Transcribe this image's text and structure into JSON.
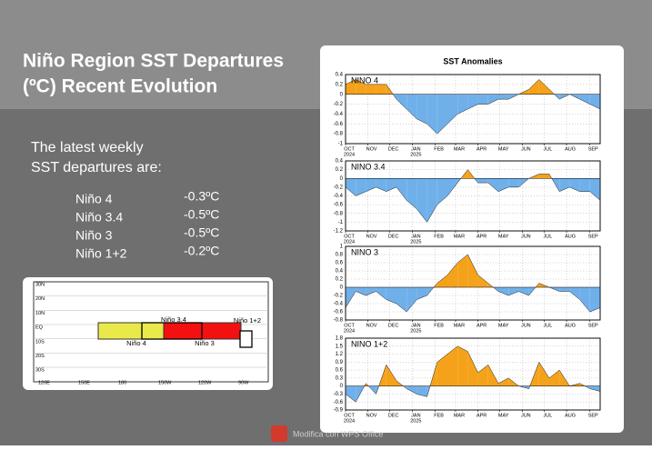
{
  "slide": {
    "title_lines": [
      "Niño Region SST Departures",
      "(ºC) Recent Evolution"
    ],
    "intro_lines": [
      "The latest weekly",
      "SST departures are:"
    ],
    "regions": [
      {
        "name": "Niño 4",
        "value": "-0.3ºC"
      },
      {
        "name": "Niño 3.4",
        "value": "-0.5ºC"
      },
      {
        "name": "Niño 3",
        "value": "-0.5ºC"
      },
      {
        "name": "Niño 1+2",
        "value": "-0.2ºC"
      }
    ],
    "panel_title": "SST Anomalies",
    "watermark": "Modifica con WPS Office"
  },
  "map": {
    "lat_labels": [
      "30N",
      "20N",
      "10N",
      "EQ",
      "10S",
      "20S",
      "30S"
    ],
    "lon_labels": [
      "120E",
      "150E",
      "180",
      "150W",
      "120W",
      "90W"
    ],
    "regions": [
      "Niño 4",
      "Niño 3.4",
      "Niño 3",
      "Niño 1+2"
    ]
  },
  "chart_data": [
    {
      "type": "area",
      "title": "NINO 4",
      "x": [
        0,
        2,
        4,
        6,
        8,
        10,
        12,
        14,
        16,
        18,
        20,
        22,
        24,
        26,
        28,
        30,
        32,
        34,
        36,
        38,
        40,
        42,
        44,
        46,
        48,
        50
      ],
      "values": [
        0.2,
        0.3,
        0.2,
        0.2,
        0.2,
        -0.1,
        -0.3,
        -0.5,
        -0.6,
        -0.8,
        -0.6,
        -0.4,
        -0.3,
        -0.2,
        -0.2,
        -0.1,
        -0.1,
        0.0,
        0.1,
        0.3,
        0.1,
        -0.1,
        0.0,
        -0.1,
        -0.2,
        -0.3
      ],
      "positive_color": "#f5a21b",
      "negative_color": "#70b0ea",
      "xlim": [
        0,
        50
      ],
      "ylim": [
        -1,
        0.4
      ],
      "yticks": [
        0.4,
        0.2,
        0,
        -0.2,
        -0.4,
        -0.6,
        -0.8,
        -1
      ],
      "xticks": [
        {
          "value": 0,
          "label": "OCT"
        },
        {
          "value": 4.4,
          "label": "NOV"
        },
        {
          "value": 8.7,
          "label": "DEC"
        },
        {
          "value": 13.1,
          "label": "JAN"
        },
        {
          "value": 17.6,
          "label": "FEB"
        },
        {
          "value": 21.6,
          "label": "MAR"
        },
        {
          "value": 26,
          "label": "APR"
        },
        {
          "value": 30.3,
          "label": "MAY"
        },
        {
          "value": 34.7,
          "label": "JUN"
        },
        {
          "value": 39,
          "label": "JUL"
        },
        {
          "value": 43.4,
          "label": "AUG"
        },
        {
          "value": 47.9,
          "label": "SEP"
        }
      ],
      "year_labels": [
        {
          "value": 0,
          "label": "2024"
        },
        {
          "value": 13.1,
          "label": "2025"
        }
      ],
      "grid": true
    },
    {
      "type": "area",
      "title": "NINO 3.4",
      "x": [
        0,
        2,
        4,
        6,
        8,
        10,
        12,
        14,
        16,
        18,
        20,
        22,
        24,
        26,
        28,
        30,
        32,
        34,
        36,
        38,
        40,
        42,
        44,
        46,
        48,
        50
      ],
      "values": [
        -0.2,
        -0.4,
        -0.3,
        -0.2,
        -0.3,
        -0.2,
        -0.5,
        -0.7,
        -1.0,
        -0.6,
        -0.4,
        -0.1,
        0.2,
        -0.1,
        -0.1,
        -0.3,
        -0.2,
        -0.2,
        0.0,
        0.1,
        0.1,
        -0.3,
        -0.2,
        -0.3,
        -0.3,
        -0.5
      ],
      "positive_color": "#f5a21b",
      "negative_color": "#70b0ea",
      "xlim": [
        0,
        50
      ],
      "ylim": [
        -1.2,
        0.4
      ],
      "yticks": [
        0.4,
        0.2,
        0,
        -0.2,
        -0.4,
        -0.6,
        -0.8,
        -1,
        -1.2
      ],
      "xticks": [
        {
          "value": 0,
          "label": "OCT"
        },
        {
          "value": 4.4,
          "label": "NOV"
        },
        {
          "value": 8.7,
          "label": "DEC"
        },
        {
          "value": 13.1,
          "label": "JAN"
        },
        {
          "value": 17.6,
          "label": "FEB"
        },
        {
          "value": 21.6,
          "label": "MAR"
        },
        {
          "value": 26,
          "label": "APR"
        },
        {
          "value": 30.3,
          "label": "MAY"
        },
        {
          "value": 34.7,
          "label": "JUN"
        },
        {
          "value": 39,
          "label": "JUL"
        },
        {
          "value": 43.4,
          "label": "AUG"
        },
        {
          "value": 47.9,
          "label": "SEP"
        }
      ],
      "year_labels": [
        {
          "value": 0,
          "label": "2024"
        },
        {
          "value": 13.1,
          "label": "2025"
        }
      ],
      "grid": true
    },
    {
      "type": "area",
      "title": "NINO 3",
      "x": [
        0,
        2,
        4,
        6,
        8,
        10,
        12,
        14,
        16,
        18,
        20,
        22,
        24,
        26,
        28,
        30,
        32,
        34,
        36,
        38,
        40,
        42,
        44,
        46,
        48,
        50
      ],
      "values": [
        -0.5,
        -0.1,
        -0.2,
        -0.1,
        -0.3,
        -0.4,
        -0.6,
        -0.3,
        -0.2,
        0.1,
        0.3,
        0.6,
        0.8,
        0.3,
        0.1,
        -0.1,
        -0.2,
        -0.1,
        -0.2,
        0.1,
        0.0,
        -0.1,
        -0.1,
        -0.3,
        -0.6,
        -0.5
      ],
      "positive_color": "#f5a21b",
      "negative_color": "#70b0ea",
      "xlim": [
        0,
        50
      ],
      "ylim": [
        -0.8,
        1
      ],
      "yticks": [
        1,
        0.8,
        0.6,
        0.4,
        0.2,
        0,
        -0.2,
        -0.4,
        -0.6,
        -0.8
      ],
      "xticks": [
        {
          "value": 0,
          "label": "OCT"
        },
        {
          "value": 4.4,
          "label": "NOV"
        },
        {
          "value": 8.7,
          "label": "DEC"
        },
        {
          "value": 13.1,
          "label": "JAN"
        },
        {
          "value": 17.6,
          "label": "FEB"
        },
        {
          "value": 21.6,
          "label": "MAR"
        },
        {
          "value": 26,
          "label": "APR"
        },
        {
          "value": 30.3,
          "label": "MAY"
        },
        {
          "value": 34.7,
          "label": "JUN"
        },
        {
          "value": 39,
          "label": "JUL"
        },
        {
          "value": 43.4,
          "label": "AUG"
        },
        {
          "value": 47.9,
          "label": "SEP"
        }
      ],
      "year_labels": [
        {
          "value": 0,
          "label": "2024"
        },
        {
          "value": 13.1,
          "label": "2025"
        }
      ],
      "grid": true
    },
    {
      "type": "area",
      "title": "NINO 1+2",
      "x": [
        0,
        2,
        4,
        6,
        8,
        10,
        12,
        14,
        16,
        18,
        20,
        22,
        24,
        26,
        28,
        30,
        32,
        34,
        36,
        38,
        40,
        42,
        44,
        46,
        48,
        50
      ],
      "values": [
        -0.3,
        -0.6,
        0.1,
        -0.3,
        0.8,
        0.2,
        -0.1,
        -0.3,
        -0.4,
        0.9,
        1.2,
        1.5,
        1.3,
        0.5,
        0.8,
        0.1,
        0.3,
        0.0,
        -0.1,
        0.9,
        0.3,
        0.6,
        0.0,
        0.1,
        -0.1,
        -0.2
      ],
      "positive_color": "#f5a21b",
      "negative_color": "#70b0ea",
      "xlim": [
        0,
        50
      ],
      "ylim": [
        -0.9,
        1.8
      ],
      "yticks": [
        1.8,
        1.5,
        1.2,
        0.9,
        0.6,
        0.3,
        0,
        -0.3,
        -0.6,
        -0.9
      ],
      "xticks": [
        {
          "value": 0,
          "label": "OCT"
        },
        {
          "value": 4.4,
          "label": "NOV"
        },
        {
          "value": 8.7,
          "label": "DEC"
        },
        {
          "value": 13.1,
          "label": "JAN"
        },
        {
          "value": 17.6,
          "label": "FEB"
        },
        {
          "value": 21.6,
          "label": "MAR"
        },
        {
          "value": 26,
          "label": "APR"
        },
        {
          "value": 30.3,
          "label": "MAY"
        },
        {
          "value": 34.7,
          "label": "JUN"
        },
        {
          "value": 39,
          "label": "JUL"
        },
        {
          "value": 43.4,
          "label": "AUG"
        },
        {
          "value": 47.9,
          "label": "SEP"
        }
      ],
      "year_labels": [
        {
          "value": 0,
          "label": "2024"
        },
        {
          "value": 13.1,
          "label": "2025"
        }
      ],
      "grid": true
    }
  ]
}
